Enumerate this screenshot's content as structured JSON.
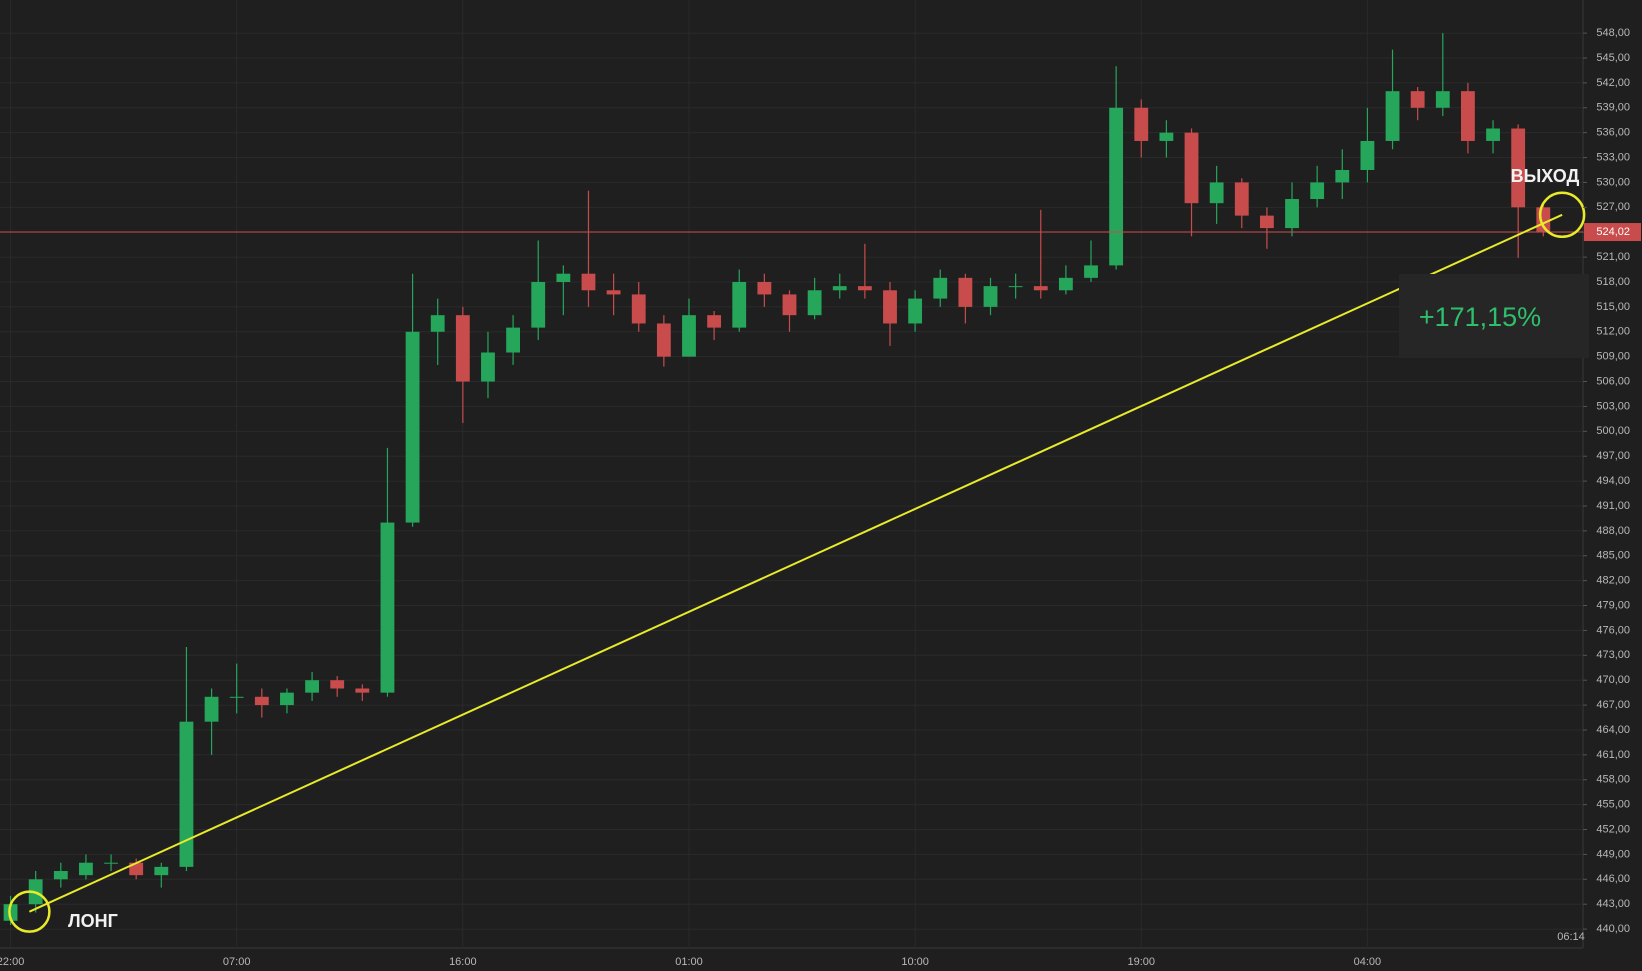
{
  "chart_data": {
    "type": "candlestick",
    "xlim": [
      -0.42,
      62.58
    ],
    "ylim": [
      437.72,
      551.99
    ],
    "xticks": [
      {
        "value": 0,
        "label": "22:00"
      },
      {
        "value": 9,
        "label": "07:00"
      },
      {
        "value": 18,
        "label": "16:00"
      },
      {
        "value": 27,
        "label": "01:00"
      },
      {
        "value": 36,
        "label": "10:00"
      },
      {
        "value": 45,
        "label": "19:00"
      },
      {
        "value": 54,
        "label": "04:00"
      }
    ],
    "yticks": [
      {
        "value": 440,
        "label": "440,00"
      },
      {
        "value": 443,
        "label": "443,00"
      },
      {
        "value": 446,
        "label": "446,00"
      },
      {
        "value": 449,
        "label": "449,00"
      },
      {
        "value": 452,
        "label": "452,00"
      },
      {
        "value": 455,
        "label": "455,00"
      },
      {
        "value": 458,
        "label": "458,00"
      },
      {
        "value": 461,
        "label": "461,00"
      },
      {
        "value": 464,
        "label": "464,00"
      },
      {
        "value": 467,
        "label": "467,00"
      },
      {
        "value": 470,
        "label": "470,00"
      },
      {
        "value": 473,
        "label": "473,00"
      },
      {
        "value": 476,
        "label": "476,00"
      },
      {
        "value": 479,
        "label": "479,00"
      },
      {
        "value": 482,
        "label": "482,00"
      },
      {
        "value": 485,
        "label": "485,00"
      },
      {
        "value": 488,
        "label": "488,00"
      },
      {
        "value": 491,
        "label": "491,00"
      },
      {
        "value": 494,
        "label": "494,00"
      },
      {
        "value": 497,
        "label": "497,00"
      },
      {
        "value": 500,
        "label": "500,00"
      },
      {
        "value": 503,
        "label": "503,00"
      },
      {
        "value": 506,
        "label": "506,00"
      },
      {
        "value": 509,
        "label": "509,00"
      },
      {
        "value": 512,
        "label": "512,00"
      },
      {
        "value": 515,
        "label": "515,00"
      },
      {
        "value": 518,
        "label": "518,00"
      },
      {
        "value": 521,
        "label": "521,00"
      },
      {
        "value": 524,
        "label": "524,00"
      },
      {
        "value": 527,
        "label": "527,00"
      },
      {
        "value": 530,
        "label": "530,00"
      },
      {
        "value": 533,
        "label": "533,00"
      },
      {
        "value": 536,
        "label": "536,00"
      },
      {
        "value": 539,
        "label": "539,00"
      },
      {
        "value": 542,
        "label": "542,00"
      },
      {
        "value": 545,
        "label": "545,00"
      },
      {
        "value": 548,
        "label": "548,00"
      }
    ],
    "grid": true,
    "up_color": "#26a65b",
    "down_color": "#c94c4c",
    "open": [
      441,
      443,
      446,
      446.5,
      448,
      448,
      446.5,
      447.5,
      465,
      468,
      468,
      467,
      468.5,
      470,
      469,
      468.5,
      489,
      512,
      514,
      506,
      509.5,
      512.5,
      518,
      519,
      517,
      516.5,
      513,
      509,
      514,
      512.5,
      518,
      516.5,
      514,
      517,
      517.5,
      517,
      513,
      516,
      518.5,
      515,
      517.5,
      517.5,
      517,
      518.5,
      520,
      539,
      535,
      536,
      527.5,
      530,
      526,
      524.5,
      528,
      530,
      531.5,
      535,
      541,
      539,
      541,
      535,
      536.5,
      527
    ],
    "high": [
      444,
      447,
      448,
      449,
      449,
      448.5,
      448,
      474,
      469,
      472,
      469,
      469,
      471,
      470.5,
      469.5,
      498,
      519,
      516,
      515,
      512,
      514,
      523,
      520,
      529,
      519,
      518,
      514,
      516,
      514.5,
      519.5,
      519,
      517,
      518.5,
      519,
      522.6,
      518,
      517,
      519.5,
      519,
      518.5,
      519,
      526.7,
      520,
      523,
      544,
      540,
      537.5,
      536.5,
      532,
      530.5,
      527,
      530,
      532,
      534,
      539,
      546,
      541.5,
      548,
      542,
      537.5,
      537,
      527.5
    ],
    "low": [
      440.5,
      442,
      445,
      446,
      447,
      446,
      445,
      447,
      461,
      466,
      465.5,
      466,
      467.5,
      468,
      467.5,
      468,
      488.5,
      508,
      501,
      504,
      508,
      511,
      514,
      515,
      514,
      512,
      507.8,
      509,
      511,
      512,
      515,
      512,
      513.5,
      516,
      516,
      510.3,
      512,
      515,
      513,
      514,
      516,
      516,
      516.5,
      518,
      519.5,
      533,
      533,
      523.5,
      525,
      524.5,
      522,
      523.5,
      527,
      528,
      530,
      534,
      537.5,
      538,
      533.5,
      533.5,
      520.9,
      523.5
    ],
    "close": [
      443,
      446,
      447,
      448,
      448,
      446.5,
      447.5,
      465,
      468,
      468,
      467,
      468.5,
      470,
      469,
      468.5,
      489,
      512,
      514,
      506,
      509.5,
      512.5,
      518,
      519,
      517,
      516.5,
      513,
      509,
      514,
      512.5,
      518,
      516.5,
      514,
      517,
      517.5,
      517,
      513,
      516,
      518.5,
      515,
      517.5,
      517.5,
      517,
      518.5,
      520,
      539,
      535,
      536,
      527.5,
      530,
      526,
      524.5,
      528,
      530,
      531.5,
      535,
      541,
      539,
      541,
      535,
      536.5,
      527,
      524.02
    ],
    "price_line": {
      "value": 524.02,
      "label": "524,02"
    },
    "current_time": "06:14",
    "trade": {
      "entry": {
        "x": 0.75,
        "price": 442.1,
        "label": "ЛОНГ"
      },
      "exit": {
        "x": 61.75,
        "price": 526.1,
        "label": "ВЫХОД"
      },
      "result": "+171,15%",
      "color": "#e8ea2a"
    }
  }
}
